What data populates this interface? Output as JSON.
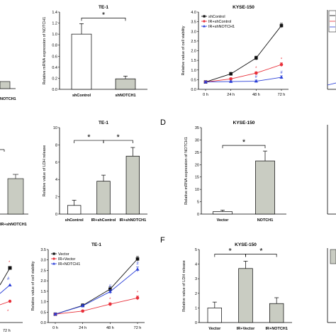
{
  "labels": {
    "panel_d": "D",
    "panel_f": "F"
  },
  "colors": {
    "black": "#111111",
    "red": "#e8303a",
    "blue": "#2a3fd8",
    "bar_white": "#ffffff",
    "bar_gray": "#c9ccc2"
  },
  "fragments": {
    "bar1": "NOTCH1",
    "tick_072h": "72 h",
    "xlab_ir_notch1": "IR+shNOTCH1"
  },
  "chart_data": [
    {
      "id": "te1-mrna",
      "type": "bar",
      "title": "TE-1",
      "xlabel": "",
      "ylabel": "Relative mRNA expression of NOTCH1",
      "categories": [
        "shControl",
        "shNOTCH1"
      ],
      "values": [
        1.0,
        0.19
      ],
      "errors": [
        0.19,
        0.05
      ],
      "ylim": [
        0,
        1.4
      ],
      "yticks": [
        "0.0",
        "0.2",
        "0.4",
        "0.6",
        "0.8",
        "1.0",
        "1.2",
        "1.4"
      ],
      "annotations": [
        "*"
      ]
    },
    {
      "id": "kyse-viability",
      "type": "line",
      "title": "KYSE-150",
      "ylabel": "Relative value of cell viability",
      "x": [
        "0 h",
        "24 h",
        "48 h",
        "72 h"
      ],
      "series": [
        {
          "name": "shControl",
          "color": "#111111",
          "values": [
            0.38,
            0.8,
            1.62,
            3.3
          ],
          "errors": [
            0.05,
            0.08,
            0.1,
            0.12
          ]
        },
        {
          "name": "IR+shControl",
          "color": "#e8303a",
          "values": [
            0.38,
            0.54,
            0.84,
            1.28
          ],
          "errors": [
            0.04,
            0.05,
            0.07,
            0.1
          ]
        },
        {
          "name": "IR+shNOTCH1",
          "color": "#2a3fd8",
          "values": [
            0.38,
            0.4,
            0.42,
            0.62
          ],
          "errors": [
            0.04,
            0.04,
            0.06,
            0.08
          ]
        }
      ],
      "ylim": [
        0.0,
        4.0
      ],
      "yticks": [
        "0.0",
        "0.5",
        "1.0",
        "1.5",
        "2.0",
        "2.5",
        "3.0",
        "3.5",
        "4.0"
      ],
      "annotations": [
        "*",
        "*",
        "#",
        "#"
      ]
    },
    {
      "id": "te1-ldh",
      "type": "bar",
      "title": "TE-1",
      "ylabel": "Relative value of LDH release",
      "categories": [
        "shControl",
        "IR+shControl",
        "IR+shNOTCH1"
      ],
      "values": [
        1.0,
        3.8,
        6.7
      ],
      "errors": [
        0.6,
        0.7,
        1.0
      ],
      "ylim": [
        0,
        10
      ],
      "yticks": [
        "0",
        "2",
        "4",
        "6",
        "8",
        "10"
      ],
      "annotations": [
        "*",
        "*"
      ]
    },
    {
      "id": "kyse-mrna",
      "type": "bar",
      "title": "KYSE-150",
      "ylabel": "Relative mRNA expression of NOTCH1",
      "categories": [
        "Vector",
        "NOTCH1"
      ],
      "values": [
        1.0,
        21.5
      ],
      "errors": [
        0.6,
        4.0
      ],
      "ylim": [
        0,
        35
      ],
      "yticks": [
        "0",
        "5",
        "10",
        "15",
        "20",
        "25",
        "30",
        "35"
      ],
      "annotations": [
        "*"
      ]
    },
    {
      "id": "te1-viability",
      "type": "line",
      "title": "TE-1",
      "ylabel": "Relative value of cell viability",
      "x": [
        "0 h",
        "24 h",
        "48 h",
        "72 h"
      ],
      "series": [
        {
          "name": "Vector",
          "color": "#111111",
          "values": [
            0.4,
            0.82,
            1.6,
            3.05
          ],
          "errors": [
            0.05,
            0.08,
            0.12,
            0.12
          ]
        },
        {
          "name": "IR+Vector",
          "color": "#e8303a",
          "values": [
            0.4,
            0.55,
            0.88,
            1.18
          ],
          "errors": [
            0.04,
            0.05,
            0.07,
            0.1
          ]
        },
        {
          "name": "IR+NOTCH1",
          "color": "#2a3fd8",
          "values": [
            0.4,
            0.8,
            1.48,
            2.55
          ],
          "errors": [
            0.05,
            0.07,
            0.1,
            0.12
          ]
        }
      ],
      "ylim": [
        0.0,
        3.5
      ],
      "yticks": [
        "0.0",
        "0.5",
        "1.0",
        "1.5",
        "2.0",
        "2.5",
        "3.0",
        "3.5"
      ],
      "annotations": [
        "*",
        "*",
        "#",
        "#"
      ]
    },
    {
      "id": "kyse-ldh",
      "type": "bar",
      "title": "KYSE-150",
      "ylabel": "Relative value of LDH release",
      "categories": [
        "Vector",
        "IR+Vector",
        "IR+NOTCH1"
      ],
      "values": [
        1.0,
        3.7,
        1.3
      ],
      "errors": [
        0.4,
        0.5,
        0.4
      ],
      "ylim": [
        0,
        5
      ],
      "yticks": [
        "0",
        "1",
        "2",
        "3",
        "4",
        "5"
      ],
      "annotations": [
        "*",
        "*"
      ]
    }
  ]
}
